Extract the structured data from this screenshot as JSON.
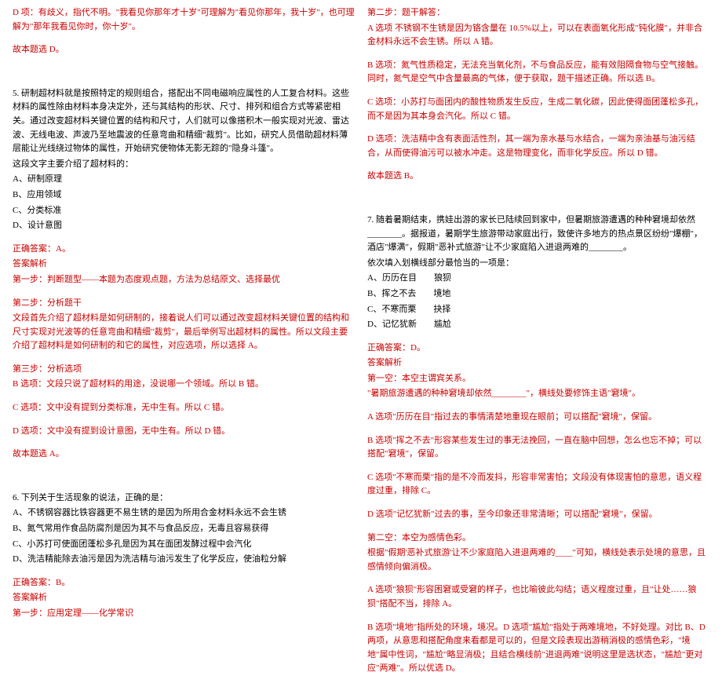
{
  "left": {
    "p1": "D 项：有歧义，指代不明。\"我看见你那年才十岁\"可理解为\"看见你那年，我十岁\"，也可理解为\"那年我看见你时，你十岁\"。",
    "p2": "故本题选 D。",
    "q5_text": "5. 研制超材料就是按照特定的规则组合，搭配出不同电磁响应属性的人工复合材料。这些材料的属性除由材料本身决定外，还与其结构的形状、尺寸、排列和组合方式等紧密相关。通过改变超材料关键位置的结构和尺寸，人们就可以像搭积木一般实现对光波、雷达波、无线电波、声波乃至地震波的任意弯曲和精细\"裁剪\"。比如，研究人员借助超材料薄层能让光线绕过物体的属性，开始研究使物体无影无踪的\"隐身斗篷\"。",
    "q5_q": "这段文字主要介绍了超材料的：",
    "q5_a": "A、研制原理",
    "q5_b": "B、应用领域",
    "q5_c": "C、分类标准",
    "q5_d": "D、设计意图",
    "q5_ans": "正确答案：A。",
    "q5_hdr": "答案解析",
    "q5_s1": "第一步：判断题型——本题为态度观点题，方法为总结原文、选择最优",
    "q5_s2t": "第二步：分析题干",
    "q5_s2_1": "文段首先介绍了超材料是如何研制的，接着说人们可以通过改变超材料关键位置的结构和尺寸实现对光波等的任意弯曲和精细\"裁剪\"，最后举例写出超材料的属性。所以文段主要介绍了超材料是如何研制的和它的属性，对应选项，所以选择 A。",
    "q5_s3t": "第三步：分析选项",
    "q5_s3_b": "B 选项：文段只说了超材料的用途，没说哪一个领域。所以 B 错。",
    "q5_s3_c": "C 选项：文中没有提到分类标准，无中生有。所以 C 错。",
    "q5_s3_d": "D 选项：文中没有提到设计意图，无中生有。所以 D 错。",
    "q5_end": "故本题选 A。",
    "q6_text": "6. 下列关于生活现象的说法，正确的是：",
    "q6_a": "A、不锈钢容器比铁容器更不易生锈的是因为所用合金材料永远不会生锈",
    "q6_b": "B、氮气常用作食品防腐剂是因为其不与食品反应，无毒且容易获得",
    "q6_c": "C、小苏打可使面团蓬松多孔是因为其在面团发酵过程中会汽化",
    "q6_d": "D、洗洁精能除去油污是因为洗洁精与油污发生了化学反应，使油粒分解",
    "q6_ans": "正确答案：B。",
    "q6_hdr": "答案解析",
    "q6_s1": "第一步：应用定理——化学常识"
  },
  "right": {
    "r_s2": "第二步：题干解答：",
    "r_a": "A 选项 不锈钢不生锈是因为铬含量在 10.5%以上，可以在表面氧化形成\"钝化膜\"，并非合金材料永远不会生锈。所以 A 错。",
    "r_b": "B 选项：氮气性质稳定，无法充当氧化剂，不与食品反应，能有效阻隔食物与空气接触。同时，氮气是空气中含量最高的气体，便于获取，题干描述正确。所以选 B。",
    "r_c": "C 选项：小苏打与面团内的酸性物质发生反应，生成二氧化碳，因此使得面团蓬松多孔，而不是因为其本身会汽化。所以 C 错。",
    "r_d": "D 选项：洗洁精中含有表面活性剂，其一端为亲水基与水结合，一端为亲油基与油污结合，从而使得油污可以被水冲走。这是物理变化，而非化学反应。所以 D 错。",
    "r_end": "故本题选 B。",
    "q7_1": "7. 随着暑期结束，携娃出游的家长已陆续回到家中，但暑期旅游遭遇的种种窘境却依然________。据报道，暑期学生旅游带动家庭出行，致使许多地方的热点景区纷纷\"爆棚\"，酒店\"爆满\"，假期\"恶补式旅游\"让不少家庭陷入进退两难的________。",
    "q7_2": "依次填入划横线部分最恰当的一项是：",
    "q7_a": "A、历历在目　　狼狈",
    "q7_b": "B、挥之不去　　境地",
    "q7_c": "C、不寒而栗　　抉择",
    "q7_d": "D、记忆犹新　　尴尬",
    "q7_ans": "正确答案：D。",
    "q7_hdr": "答案解析",
    "q7_s1t": "第一空：本空主谓宾关系。",
    "q7_s1_1": "\"暑期旅游遭遇的种种窘境却依然________\"，横线处要修饰主语\"窘境\"。",
    "q7_s1_a": "A 选项\"历历在目\"指过去的事情清楚地重现在眼前；可以搭配\"窘境\"，保留。",
    "q7_s1_b": "B 选项\"挥之不去\"形容某些发生过的事无法挽回，一直在脑中回想，怎么也忘不掉；可以搭配\"窘境\"，保留。",
    "q7_s1_c": "C 选项\"不寒而栗\"指的是不冷而发抖，形容非常害怕；文段没有体现害怕的意思，语义程度过重，排除 C。",
    "q7_s1_d": "D 选项\"记忆犹新\"过去的事，至今印象还非常清晰；可以搭配\"窘境\"，保留。",
    "q7_s2t": "第二空：本空为感情色彩。",
    "q7_s2_1": "根据\"假期'恶补式旅游'让不少家庭陷入进退两难的____\"可知，横线处表示处境的意思，且感情倾向偏消极。",
    "q7_s2_a": "A 选项\"狼狈\"形容困窘或受窘的样子，也比喻彼此勾结；语义程度过重，且\"让处……狼狈\"搭配不当，排除 A。",
    "q7_s2_b": "B 选项\"境地\"指所处的环境，境况。D 选项\"尴尬\"指处于两难境地，不好处理。对比 B、D 两项，从意思和搭配角度来看都是可以的，但是文段表现出游稍消极的感情色彩，\"境地\"属中性词，\"尴尬\"略显消极；且结合横线前\"进退两难\"说明这里是选状态，\"尴尬\"更对应\"两难\"。所以优选 D。"
  }
}
